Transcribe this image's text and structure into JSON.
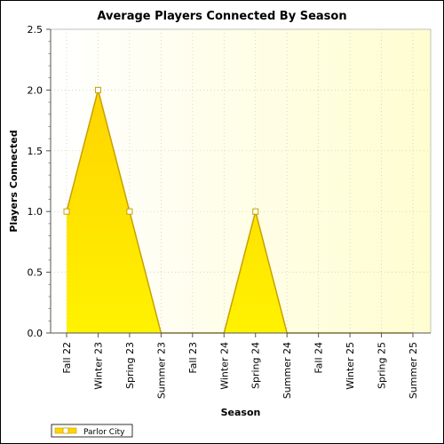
{
  "chart_data": {
    "type": "area",
    "title": "Average Players Connected By Season",
    "xlabel": "Season",
    "ylabel": "Players Connected",
    "categories": [
      "Fall 22",
      "Winter 23",
      "Spring 23",
      "Summer 23",
      "Fall 23",
      "Winter 24",
      "Spring 24",
      "Summer 24",
      "Fall 24",
      "Winter 25",
      "Spring 25",
      "Summer 25"
    ],
    "series": [
      {
        "name": "Parlor City",
        "values": [
          1.0,
          2.0,
          1.0,
          0.0,
          0.0,
          0.0,
          1.0,
          0.0,
          0.0,
          0.0,
          0.0,
          0.0
        ]
      }
    ],
    "ylim": [
      0.0,
      2.5
    ],
    "yticks": [
      "0.0",
      "0.5",
      "1.0",
      "1.5",
      "2.0",
      "2.5"
    ],
    "grid": true,
    "legend_position": "bottom-left",
    "colors": {
      "area_top": "#ffd400",
      "area_bottom": "#fff200",
      "line": "#c8a000",
      "plot_bg_left": "#ffffff",
      "plot_bg_right": "#fffdd0"
    }
  }
}
